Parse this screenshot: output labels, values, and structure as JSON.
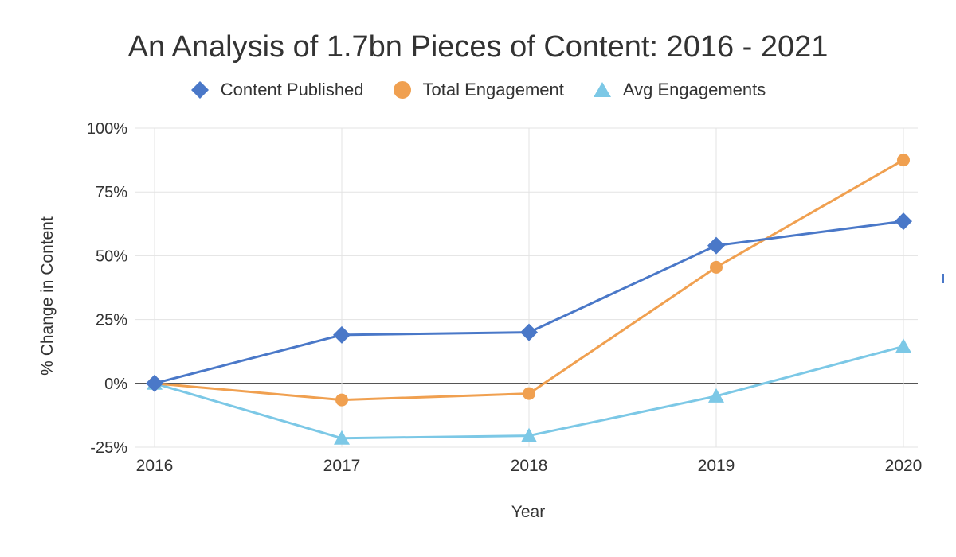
{
  "chart_data": {
    "type": "line",
    "title": "An Analysis of 1.7bn Pieces of Content: 2016 - 2021",
    "xlabel": "Year",
    "ylabel": "% Change in Content",
    "categories": [
      "2016",
      "2017",
      "2018",
      "2019",
      "2020"
    ],
    "y_ticks": [
      "-25%",
      "0%",
      "25%",
      "50%",
      "75%",
      "100%"
    ],
    "ylim": [
      -25,
      100
    ],
    "grid": true,
    "legend_position": "top",
    "series": [
      {
        "name": "Content Published",
        "marker": "diamond",
        "color": "#4a78c8",
        "values": [
          0,
          19,
          20,
          54,
          63.5
        ]
      },
      {
        "name": "Total Engagement",
        "marker": "circle",
        "color": "#f0a050",
        "values": [
          0,
          -6.5,
          -4,
          45.5,
          87.5
        ]
      },
      {
        "name": "Avg Engagements",
        "marker": "triangle",
        "color": "#7cc8e6",
        "values": [
          0,
          -21.5,
          -20.5,
          -5,
          14.5
        ]
      }
    ]
  }
}
